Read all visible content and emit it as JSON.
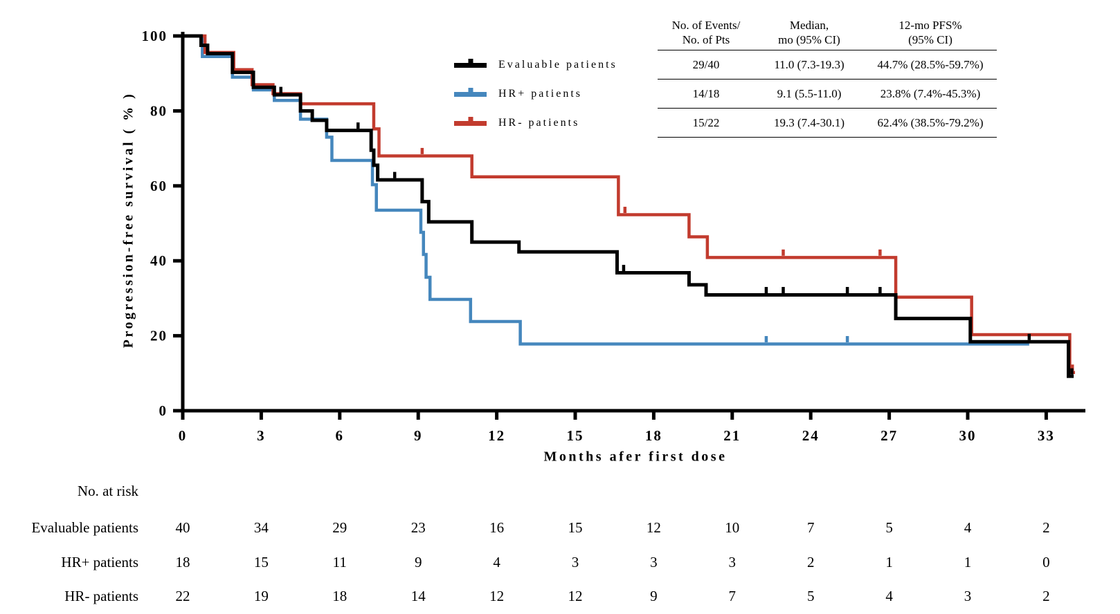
{
  "figure": {
    "y_axis_label": "Progression-free survival ( % )",
    "x_axis_label": "Months afer first dose"
  },
  "stats_table": {
    "col_headers": [
      "No. of Events/\nNo. of Pts",
      "Median,\nmo (95% CI)",
      "12-mo PFS%\n(95% CI)"
    ],
    "rows": [
      [
        "29/40",
        "11.0 (7.3-19.3)",
        "44.7% (28.5%-59.7%)"
      ],
      [
        "14/18",
        "9.1 (5.5-11.0)",
        "23.8% (7.4%-45.3%)"
      ],
      [
        "15/22",
        "19.3 (7.4-30.1)",
        "62.4% (38.5%-79.2%)"
      ]
    ]
  },
  "chart_data": {
    "type": "line",
    "subtype": "kaplan-meier-step",
    "title": "",
    "xlabel": "Months afer first dose",
    "ylabel": "Progression-free survival ( % )",
    "xlim": [
      0,
      34.5
    ],
    "ylim": [
      0,
      100
    ],
    "grid": false,
    "legend_position": "upper-center-left",
    "x_ticks": [
      0,
      3,
      6,
      9,
      12,
      15,
      18,
      21,
      24,
      27,
      30,
      33
    ],
    "y_ticks": [
      0,
      20,
      40,
      60,
      80,
      100
    ],
    "series": [
      {
        "name": "Evaluable patients",
        "color": "#000000",
        "line_width": 5,
        "steps": [
          [
            0,
            100
          ],
          [
            0.7,
            97.5
          ],
          [
            0.95,
            95.3
          ],
          [
            1.9,
            90.3
          ],
          [
            2.7,
            86.3
          ],
          [
            3.5,
            84.3
          ],
          [
            4.5,
            80.0
          ],
          [
            4.95,
            77.5
          ],
          [
            5.5,
            74.8
          ],
          [
            7.2,
            69.5
          ],
          [
            7.3,
            65.5
          ],
          [
            7.45,
            61.6
          ],
          [
            9.15,
            55.8
          ],
          [
            9.4,
            50.4
          ],
          [
            11.05,
            45.0
          ],
          [
            12.85,
            42.4
          ],
          [
            16.6,
            36.8
          ],
          [
            19.35,
            33.6
          ],
          [
            20.0,
            30.9
          ],
          [
            27.25,
            24.6
          ],
          [
            30.1,
            18.4
          ],
          [
            33.85,
            9.2
          ]
        ],
        "censors": [
          [
            3.75,
            84.3
          ],
          [
            6.7,
            74.8
          ],
          [
            8.1,
            61.6
          ],
          [
            16.85,
            36.8
          ],
          [
            22.3,
            30.9
          ],
          [
            22.95,
            30.9
          ],
          [
            25.4,
            30.9
          ],
          [
            26.65,
            30.9
          ],
          [
            32.35,
            18.4
          ],
          [
            33.98,
            9.2
          ]
        ],
        "end_month": 34.05
      },
      {
        "name": "HR+ patients",
        "color": "#4587BD",
        "line_width": 4.5,
        "steps": [
          [
            0,
            100
          ],
          [
            0.75,
            94.5
          ],
          [
            1.9,
            89.0
          ],
          [
            2.7,
            85.6
          ],
          [
            3.5,
            82.8
          ],
          [
            4.5,
            77.8
          ],
          [
            5.5,
            73.0
          ],
          [
            5.7,
            66.8
          ],
          [
            7.25,
            60.3
          ],
          [
            7.4,
            53.5
          ],
          [
            9.1,
            47.6
          ],
          [
            9.2,
            41.7
          ],
          [
            9.3,
            35.6
          ],
          [
            9.45,
            29.7
          ],
          [
            11.0,
            23.8
          ],
          [
            12.9,
            17.8
          ]
        ],
        "censors": [
          [
            22.3,
            17.8
          ],
          [
            25.4,
            17.8
          ]
        ],
        "end_month": 32.35
      },
      {
        "name": "HR- patients",
        "color": "#C23B2E",
        "line_width": 4.5,
        "steps": [
          [
            0,
            100
          ],
          [
            0.85,
            95.6
          ],
          [
            1.95,
            91.0
          ],
          [
            2.65,
            87.0
          ],
          [
            3.45,
            84.6
          ],
          [
            4.5,
            81.9
          ],
          [
            7.3,
            75.2
          ],
          [
            7.5,
            68.0
          ],
          [
            11.05,
            62.4
          ],
          [
            16.65,
            52.3
          ],
          [
            19.35,
            46.4
          ],
          [
            20.05,
            40.9
          ],
          [
            27.25,
            30.3
          ],
          [
            30.15,
            20.3
          ],
          [
            33.9,
            10.2
          ]
        ],
        "censors": [
          [
            9.15,
            68.0
          ],
          [
            16.9,
            52.3
          ],
          [
            22.95,
            40.9
          ],
          [
            26.65,
            40.9
          ],
          [
            34.0,
            10.2
          ]
        ],
        "end_month": 34.1
      }
    ],
    "at_risk": {
      "title": "No. at risk",
      "months": [
        0,
        3,
        6,
        9,
        12,
        15,
        18,
        21,
        24,
        27,
        30,
        33
      ],
      "rows": [
        {
          "label": "Evaluable patients",
          "counts": [
            40,
            34,
            29,
            23,
            16,
            15,
            12,
            10,
            7,
            5,
            4,
            2
          ]
        },
        {
          "label": "HR+ patients",
          "counts": [
            18,
            15,
            11,
            9,
            4,
            3,
            3,
            3,
            2,
            1,
            1,
            0
          ]
        },
        {
          "label": "HR- patients",
          "counts": [
            22,
            19,
            18,
            14,
            12,
            12,
            9,
            7,
            5,
            4,
            3,
            2
          ]
        }
      ]
    }
  }
}
